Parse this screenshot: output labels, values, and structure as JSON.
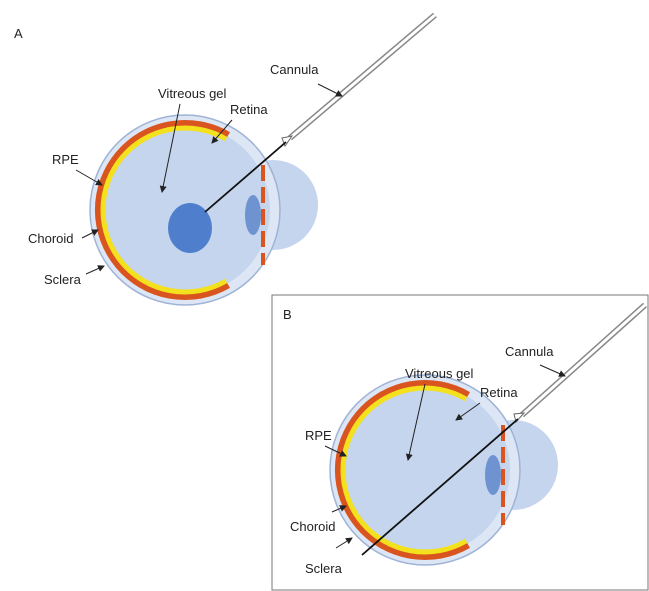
{
  "panels": [
    {
      "label": "A",
      "annotations": [
        "Cannula",
        "Vitreous gel",
        "Retina",
        "RPE",
        "Choroid",
        "Sclera"
      ]
    },
    {
      "label": "B",
      "annotations": [
        "Cannula",
        "Vitreous gel",
        "Retina",
        "RPE",
        "Choroid",
        "Sclera"
      ]
    }
  ]
}
